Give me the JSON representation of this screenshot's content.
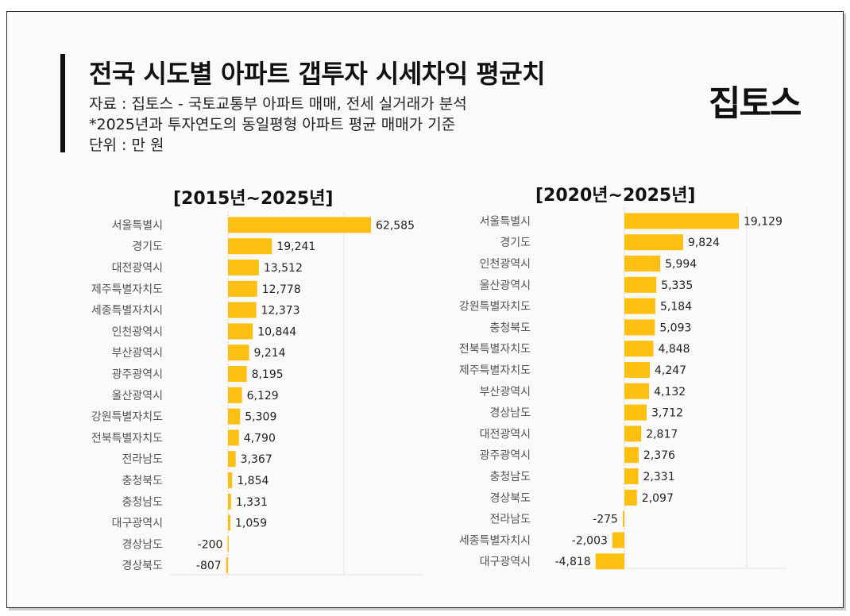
{
  "header": {
    "title": "전국 시도별 아파트 갭투자 시세차익 평균치",
    "source": "자료 : 집토스 - 국토교통부 아파트 매매, 전세 실거래가 분석",
    "note": "*2025년과 투자연도의 동일평형 아파트 평균 매매가 기준",
    "unit": "단위 : 만 원",
    "logo": "집토스"
  },
  "colors": {
    "bar": "#FDC010",
    "axis": "#cfcfcf",
    "grid": "#e6e6e6"
  },
  "chart_data": [
    {
      "type": "bar",
      "orientation": "horizontal",
      "title": "[2015년~2025년]",
      "categories": [
        "서울특별시",
        "경기도",
        "대전광역시",
        "제주특별자치도",
        "세종특별자치시",
        "인천광역시",
        "부산광역시",
        "광주광역시",
        "울산광역시",
        "강원특별자치도",
        "전북특별자치도",
        "전라남도",
        "충청북도",
        "충청남도",
        "대구광역시",
        "경상남도",
        "경상북도"
      ],
      "values": [
        62585,
        19241,
        13512,
        12778,
        12373,
        10844,
        9214,
        8195,
        6129,
        5309,
        4790,
        3367,
        1854,
        1331,
        1059,
        -200,
        -807
      ],
      "labels": [
        "62,585",
        "19,241",
        "13,512",
        "12,778",
        "12,373",
        "10,844",
        "9,214",
        "8,195",
        "6,129",
        "5,309",
        "4,790",
        "3,367",
        "1,854",
        "1,331",
        "1,059",
        "-200",
        "-807"
      ]
    },
    {
      "type": "bar",
      "orientation": "horizontal",
      "title": "[2020년~2025년]",
      "categories": [
        "서울특별시",
        "경기도",
        "인천광역시",
        "울산광역시",
        "강원특별자치도",
        "충청북도",
        "전북특별자치도",
        "제주특별자치도",
        "부산광역시",
        "경상남도",
        "대전광역시",
        "광주광역시",
        "충청남도",
        "경상북도",
        "전라남도",
        "세종특별자치시",
        "대구광역시"
      ],
      "values": [
        19129,
        9824,
        5994,
        5335,
        5184,
        5093,
        4848,
        4247,
        4132,
        3712,
        2817,
        2376,
        2331,
        2097,
        -275,
        -2003,
        -4818
      ],
      "labels": [
        "19,129",
        "9,824",
        "5,994",
        "5,335",
        "5,184",
        "5,093",
        "4,848",
        "4,247",
        "4,132",
        "3,712",
        "2,817",
        "2,376",
        "2,331",
        "2,097",
        "-275",
        "-2,003",
        "-4,818"
      ]
    }
  ]
}
